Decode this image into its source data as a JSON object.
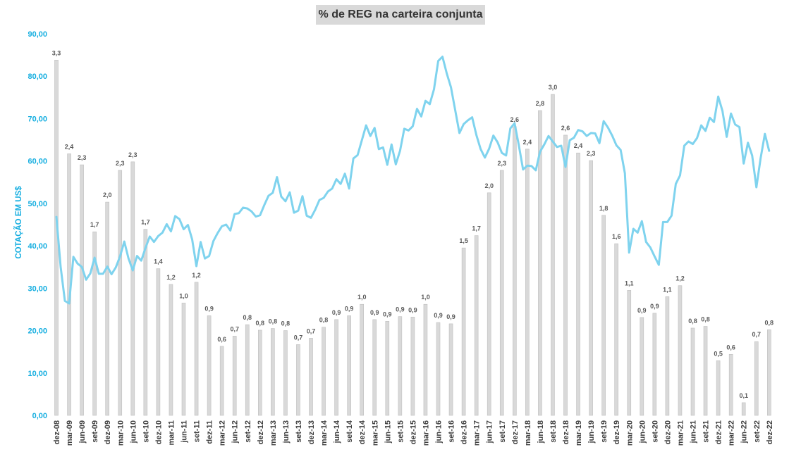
{
  "chart_data": {
    "type": "bar+line",
    "title": "% de REG na carteira conjunta",
    "ylabel": "COTAÇÃO EM US$",
    "ylim": [
      0,
      90
    ],
    "yticks": [
      "0,00",
      "10,00",
      "20,00",
      "30,00",
      "40,00",
      "50,00",
      "60,00",
      "70,00",
      "80,00",
      "90,00"
    ],
    "x_tick_labels": [
      "dez-08",
      "mar-09",
      "jun-09",
      "set-09",
      "dez-09",
      "mar-10",
      "jun-10",
      "set-10",
      "dez-10",
      "mar-11",
      "jun-11",
      "set-11",
      "dez-11",
      "mar-12",
      "jun-12",
      "set-12",
      "dez-12",
      "mar-13",
      "jun-13",
      "set-13",
      "dez-13",
      "mar-14",
      "jun-14",
      "set-14",
      "dez-14",
      "mar-15",
      "jun-15",
      "set-15",
      "dez-15",
      "mar-16",
      "jun-16",
      "set-16",
      "dez-16",
      "mar-17",
      "jun-17",
      "set-17",
      "dez-17",
      "mar-18",
      "jun-18",
      "set-18",
      "dez-18",
      "mar-19",
      "jun-19",
      "set-19",
      "dez-19",
      "mar-20",
      "jun-20",
      "set-20",
      "dez-20",
      "mar-21",
      "jun-21",
      "set-21",
      "dez-21",
      "mar-22",
      "jun-22",
      "set-22",
      "dez-22"
    ],
    "bar_series": {
      "color": "#d9d9d9",
      "values": [
        83.8,
        61.7,
        59.1,
        43.3,
        50.3,
        57.8,
        59.8,
        43.9,
        34.6,
        30.9,
        26.5,
        31.4,
        23.5,
        16.3,
        18.7,
        21.4,
        20.1,
        20.5,
        20.0,
        16.7,
        18.2,
        20.8,
        22.6,
        23.5,
        26.2,
        22.6,
        22.2,
        23.3,
        23.2,
        26.2,
        21.9,
        21.6,
        39.5,
        42.4,
        52.5,
        57.8,
        68.1,
        62.8,
        71.9,
        75.7,
        66.1,
        61.9,
        60.1,
        47.2,
        40.5,
        29.5,
        23.1,
        24.1,
        28.0,
        30.6,
        20.6,
        21.0,
        12.9,
        14.4,
        3.0,
        17.4,
        20.2
      ],
      "labels": [
        "3,3",
        "2,4",
        "2,3",
        "1,7",
        "2,0",
        "2,3",
        "2,3",
        "1,7",
        "1,4",
        "1,2",
        "1,0",
        "1,2",
        "0,9",
        "0,6",
        "0,7",
        "0,8",
        "0,8",
        "0,8",
        "0,8",
        "0,7",
        "0,7",
        "0,8",
        "0,9",
        "0,9",
        "1,0",
        "0,9",
        "0,9",
        "0,9",
        "0,9",
        "1,0",
        "0,9",
        "0,9",
        "1,5",
        "1,7",
        "2,0",
        "2,3",
        "2,6",
        "2,4",
        "2,8",
        "3,0",
        "2,6",
        "2,4",
        "2,3",
        "1,8",
        "1,6",
        "1,1",
        "0,9",
        "0,9",
        "1,1",
        "1,2",
        "0,8",
        "0,8",
        "0,5",
        "0,6",
        "0,1",
        "0,7",
        "0,8"
      ]
    },
    "line_series": {
      "color": "#7fd3ee",
      "step": "monthly",
      "values": [
        46.8,
        35.0,
        27.0,
        26.4,
        37.4,
        35.8,
        35.0,
        32.0,
        33.5,
        37.2,
        33.4,
        33.4,
        35.1,
        33.3,
        34.9,
        37.5,
        41.0,
        37.0,
        34.2,
        37.6,
        36.5,
        39.5,
        42.2,
        40.9,
        42.3,
        43.1,
        45.1,
        43.4,
        47.0,
        46.3,
        43.9,
        44.9,
        41.5,
        35.2,
        40.9,
        37.0,
        37.6,
        41.1,
        43.0,
        44.6,
        45.0,
        43.6,
        47.5,
        47.7,
        49.0,
        48.8,
        48.1,
        46.9,
        47.2,
        49.6,
        51.8,
        52.5,
        56.2,
        51.6,
        50.5,
        52.6,
        47.8,
        48.3,
        51.7,
        47.1,
        46.6,
        48.5,
        50.8,
        51.3,
        52.8,
        53.5,
        55.7,
        54.6,
        57.0,
        53.5,
        60.6,
        61.4,
        64.9,
        68.4,
        65.9,
        67.8,
        62.8,
        63.2,
        59.1,
        63.9,
        59.2,
        62.4,
        67.6,
        67.2,
        68.2,
        72.3,
        70.5,
        74.2,
        73.4,
        76.9,
        83.6,
        84.6,
        80.7,
        77.4,
        72.0,
        66.6,
        68.7,
        69.6,
        70.3,
        66.1,
        62.8,
        60.8,
        62.9,
        66.0,
        64.4,
        61.9,
        61.3,
        67.7,
        68.9,
        63.7,
        58.0,
        58.9,
        58.8,
        57.8,
        62.2,
        63.9,
        65.9,
        64.6,
        63.3,
        63.6,
        58.6,
        64.9,
        65.5,
        67.3,
        67.0,
        65.9,
        66.6,
        66.5,
        64.2,
        69.4,
        67.9,
        66.0,
        63.7,
        62.6,
        57.1,
        38.4,
        44.0,
        43.1,
        45.8,
        40.9,
        39.6,
        37.5,
        35.5,
        45.6,
        45.6,
        47.1,
        54.6,
        56.6,
        63.6,
        64.6,
        64.0,
        65.4,
        68.4,
        67.1,
        70.2,
        69.2,
        75.2,
        71.8,
        65.7,
        71.2,
        68.6,
        68.0,
        59.4,
        64.3,
        61.3,
        53.8,
        60.7,
        66.4,
        62.4
      ]
    }
  }
}
